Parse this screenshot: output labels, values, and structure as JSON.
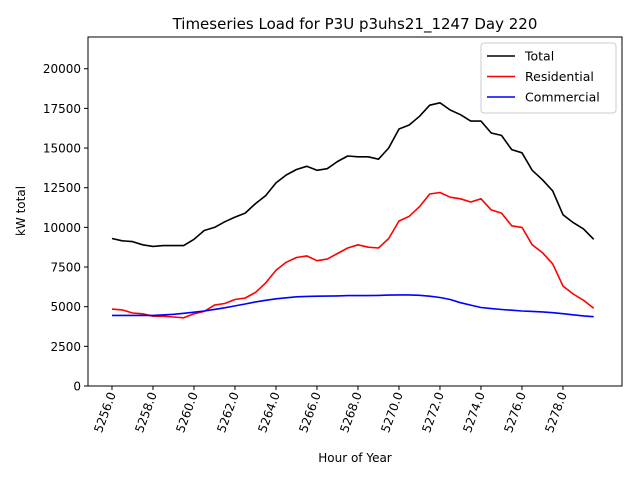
{
  "chart_data": {
    "type": "line",
    "title": "Timeseries Load for P3U p3uhs21_1247  Day 220",
    "xlabel": "Hour of Year",
    "ylabel": "kW total",
    "xlim": [
      5254.83,
      5280.88
    ],
    "ylim": [
      0,
      22000
    ],
    "xticks": [
      5256,
      5258,
      5260,
      5262,
      5264,
      5266,
      5268,
      5270,
      5272,
      5274,
      5276,
      5278
    ],
    "xtick_labels": [
      "5256.0",
      "5258.0",
      "5260.0",
      "5262.0",
      "5264.0",
      "5266.0",
      "5268.0",
      "5270.0",
      "5272.0",
      "5274.0",
      "5276.0",
      "5278.0"
    ],
    "yticks": [
      0,
      2500,
      5000,
      7500,
      10000,
      12500,
      15000,
      17500,
      20000
    ],
    "ytick_labels": [
      "0",
      "2500",
      "5000",
      "7500",
      "10000",
      "12500",
      "15000",
      "17500",
      "20000"
    ],
    "grid": false,
    "legend_position": "top-right",
    "x_start": 5256,
    "x_step": 0.5,
    "series": [
      {
        "name": "Total",
        "color": "#000000",
        "values": [
          9300,
          9150,
          9100,
          8900,
          8800,
          8850,
          8850,
          8850,
          9250,
          9800,
          10000,
          10350,
          10650,
          10900,
          11500,
          12000,
          12800,
          13300,
          13650,
          13850,
          13600,
          13700,
          14150,
          14500,
          14450,
          14450,
          14300,
          15000,
          16200,
          16450,
          17000,
          17700,
          17850,
          17400,
          17100,
          16700,
          16700,
          15950,
          15800,
          14900,
          14700,
          13600,
          13000,
          12300,
          10800,
          10300,
          9900,
          9250
        ]
      },
      {
        "name": "Residential",
        "color": "#ff0000",
        "values": [
          4850,
          4800,
          4600,
          4550,
          4400,
          4400,
          4350,
          4300,
          4550,
          4700,
          5100,
          5200,
          5450,
          5550,
          5900,
          6500,
          7300,
          7800,
          8100,
          8200,
          7900,
          8000,
          8350,
          8700,
          8900,
          8750,
          8700,
          9300,
          10400,
          10700,
          11300,
          12100,
          12200,
          11900,
          11800,
          11600,
          11800,
          11100,
          10900,
          10100,
          10000,
          8900,
          8400,
          7700,
          6300,
          5800,
          5400,
          4900
        ]
      },
      {
        "name": "Commercial",
        "color": "#0000ff",
        "values": [
          4450,
          4450,
          4450,
          4450,
          4450,
          4480,
          4520,
          4580,
          4650,
          4730,
          4830,
          4930,
          5050,
          5170,
          5300,
          5400,
          5500,
          5560,
          5620,
          5650,
          5660,
          5670,
          5680,
          5700,
          5700,
          5700,
          5710,
          5730,
          5740,
          5740,
          5720,
          5660,
          5580,
          5450,
          5250,
          5100,
          4950,
          4880,
          4820,
          4780,
          4730,
          4700,
          4670,
          4620,
          4560,
          4490,
          4420,
          4370
        ]
      }
    ]
  }
}
